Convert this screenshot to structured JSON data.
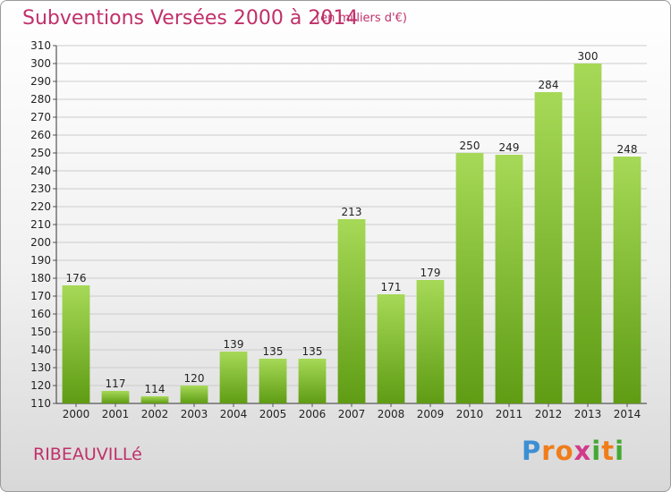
{
  "header": {
    "title": "Subventions Versées 2000 à 2014",
    "subtitle": "(en milliers d'€)"
  },
  "footer": {
    "commune": "RIBEAUVILLé",
    "logo_letters": [
      "P",
      "r",
      "o",
      "x",
      "i",
      "t",
      "i"
    ],
    "logo_colors": [
      "#3d8fd4",
      "#f07d1a",
      "#f07d1a",
      "#d23a8a",
      "#45a833",
      "#f07d1a",
      "#45a833"
    ]
  },
  "colors": {
    "bar_light": "#a6d957",
    "bar_dark": "#5f9c14",
    "text": "#222222",
    "grid": "#cccccc",
    "title": "#c0306a"
  },
  "chart_data": {
    "type": "bar",
    "categories": [
      "2000",
      "2001",
      "2002",
      "2003",
      "2004",
      "2005",
      "2006",
      "2007",
      "2008",
      "2009",
      "2010",
      "2011",
      "2012",
      "2013",
      "2014"
    ],
    "values": [
      176,
      117,
      114,
      120,
      139,
      135,
      135,
      213,
      171,
      179,
      250,
      249,
      284,
      300,
      248
    ],
    "title": "Subventions Versées 2000 à 2014",
    "xlabel": "",
    "ylabel": "",
    "ylim": [
      110,
      310
    ],
    "ytick_step": 10,
    "grid": true,
    "data_labels": true,
    "legend": "none"
  }
}
